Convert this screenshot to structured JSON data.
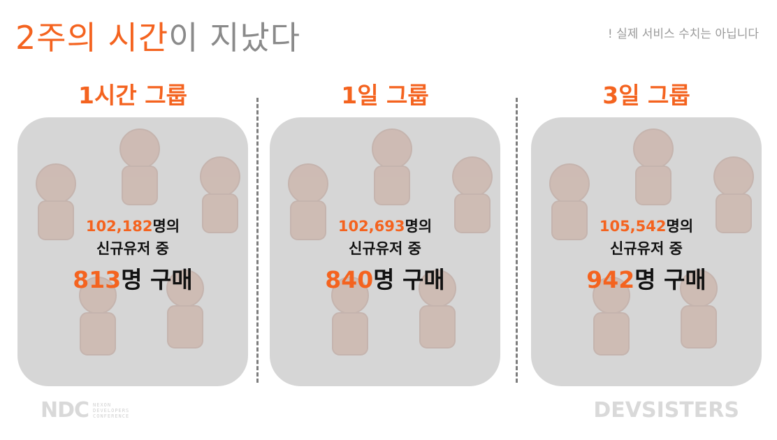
{
  "header": {
    "title_highlight": "2주의 시간",
    "title_rest": "이 지났다",
    "disclaimer": "! 실제 서비스 수치는 아닙니다"
  },
  "groups": [
    {
      "title": "1시간 그룹",
      "users": "102,182",
      "users_suffix": "명의",
      "line2": "신규유저 중",
      "buyers": "813",
      "buyers_suffix": "명 구매"
    },
    {
      "title": "1일 그룹",
      "users": "102,693",
      "users_suffix": "명의",
      "line2": "신규유저 중",
      "buyers": "840",
      "buyers_suffix": "명 구매"
    },
    {
      "title": "3일 그룹",
      "users": "105,542",
      "users_suffix": "명의",
      "line2": "신규유저 중",
      "buyers": "942",
      "buyers_suffix": "명 구매"
    }
  ],
  "footer": {
    "ndc_mark": "NDC",
    "ndc_sub_1": "NEXON",
    "ndc_sub_2": "DEVELOPERS",
    "ndc_sub_3": "CONFERENCE",
    "devsisters": "DEVSISTERS"
  },
  "colors": {
    "accent": "#f4631f",
    "card": "#d6d6d6",
    "muted": "#8a8a8a"
  }
}
